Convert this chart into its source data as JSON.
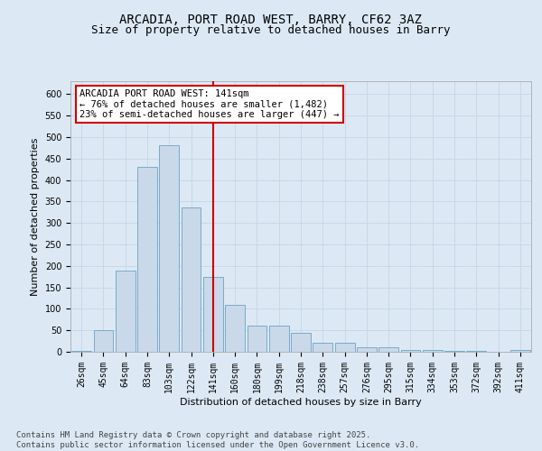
{
  "title_line1": "ARCADIA, PORT ROAD WEST, BARRY, CF62 3AZ",
  "title_line2": "Size of property relative to detached houses in Barry",
  "xlabel": "Distribution of detached houses by size in Barry",
  "ylabel": "Number of detached properties",
  "categories": [
    "26sqm",
    "45sqm",
    "64sqm",
    "83sqm",
    "103sqm",
    "122sqm",
    "141sqm",
    "160sqm",
    "180sqm",
    "199sqm",
    "218sqm",
    "238sqm",
    "257sqm",
    "276sqm",
    "295sqm",
    "315sqm",
    "334sqm",
    "353sqm",
    "372sqm",
    "392sqm",
    "411sqm"
  ],
  "values": [
    3,
    50,
    190,
    430,
    480,
    335,
    175,
    110,
    60,
    60,
    45,
    20,
    20,
    10,
    10,
    5,
    5,
    3,
    2,
    1,
    5
  ],
  "bar_color": "#c9d9ea",
  "bar_edge_color": "#7aaac8",
  "vline_index": 6,
  "vline_color": "#cc0000",
  "annotation_line1": "ARCADIA PORT ROAD WEST: 141sqm",
  "annotation_line2": "← 76% of detached houses are smaller (1,482)",
  "annotation_line3": "23% of semi-detached houses are larger (447) →",
  "annotation_box_edge": "#cc0000",
  "ylim_max": 630,
  "yticks": [
    0,
    50,
    100,
    150,
    200,
    250,
    300,
    350,
    400,
    450,
    500,
    550,
    600
  ],
  "grid_color": "#c8d8e8",
  "bg_color": "#dce9f5",
  "footer_line1": "Contains HM Land Registry data © Crown copyright and database right 2025.",
  "footer_line2": "Contains public sector information licensed under the Open Government Licence v3.0.",
  "title_fontsize": 10,
  "subtitle_fontsize": 9,
  "axis_label_fontsize": 8,
  "tick_fontsize": 7,
  "annotation_fontsize": 7.5,
  "footer_fontsize": 6.5
}
